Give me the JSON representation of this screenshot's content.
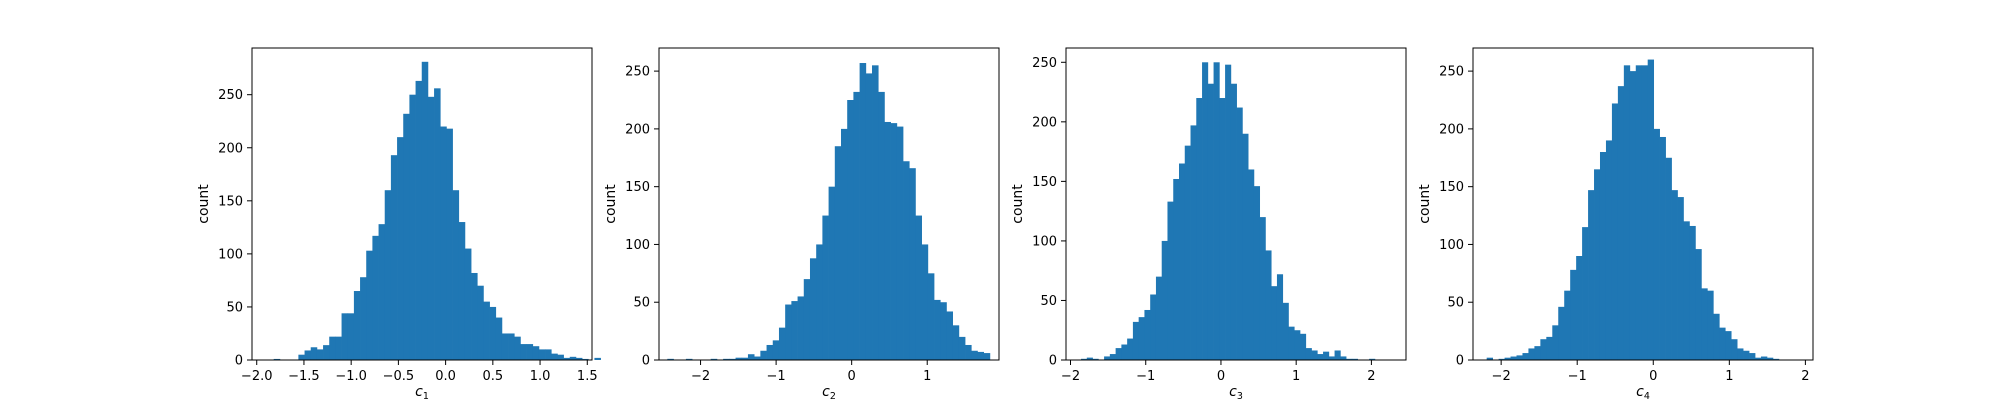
{
  "chart_data": [
    {
      "type": "bar",
      "xlabel": "c",
      "xlabel_sub": "1",
      "ylabel": "count",
      "xlim": [
        -2.05,
        1.55
      ],
      "ylim": [
        0,
        294
      ],
      "xticks": [
        -2.0,
        -1.5,
        -1.0,
        -0.5,
        0.0,
        0.5,
        1.0,
        1.5
      ],
      "xtick_labels": [
        "−2.0",
        "−1.5",
        "−1.0",
        "−0.5",
        "0.0",
        "0.5",
        "1.0",
        "1.5"
      ],
      "yticks": [
        0,
        50,
        100,
        150,
        200,
        250
      ],
      "ytick_labels": [
        "0",
        "50",
        "100",
        "150",
        "200",
        "250"
      ],
      "bin_start": -1.82,
      "bin_width": 0.0653,
      "values": [
        1,
        0,
        0,
        0,
        5,
        9,
        12,
        10,
        14,
        22,
        22,
        44,
        44,
        65,
        78,
        103,
        117,
        128,
        160,
        193,
        210,
        232,
        250,
        263,
        281,
        248,
        256,
        220,
        218,
        160,
        130,
        105,
        82,
        70,
        55,
        50,
        40,
        25,
        25,
        22,
        15,
        15,
        13,
        10,
        10,
        6,
        5,
        2,
        3,
        2,
        1,
        0,
        2
      ]
    },
    {
      "type": "bar",
      "xlabel": "c",
      "xlabel_sub": "2",
      "ylabel": "count",
      "xlim": [
        -2.55,
        1.95
      ],
      "ylim": [
        0,
        270
      ],
      "xticks": [
        -2,
        -1,
        0,
        1
      ],
      "xtick_labels": [
        "−2",
        "−1",
        "0",
        "1"
      ],
      "yticks": [
        0,
        50,
        100,
        150,
        200,
        250
      ],
      "ytick_labels": [
        "0",
        "50",
        "100",
        "150",
        "200",
        "250"
      ],
      "bin_start": -2.44,
      "bin_width": 0.0821,
      "values": [
        1,
        0,
        0,
        1,
        0,
        0,
        0,
        1,
        0,
        1,
        1,
        2,
        2,
        5,
        3,
        8,
        13,
        17,
        28,
        48,
        51,
        55,
        70,
        88,
        100,
        125,
        150,
        185,
        200,
        225,
        232,
        257,
        248,
        255,
        232,
        206,
        205,
        202,
        172,
        166,
        125,
        100,
        75,
        52,
        50,
        42,
        30,
        20,
        13,
        8,
        7,
        6
      ]
    },
    {
      "type": "bar",
      "xlabel": "c",
      "xlabel_sub": "3",
      "ylabel": "count",
      "xlim": [
        -2.06,
        2.46
      ],
      "ylim": [
        0,
        262
      ],
      "xticks": [
        -2,
        -1,
        0,
        1,
        2
      ],
      "xtick_labels": [
        "−2",
        "−1",
        "0",
        "1",
        "2"
      ],
      "yticks": [
        0,
        50,
        100,
        150,
        200,
        250
      ],
      "ytick_labels": [
        "0",
        "50",
        "100",
        "150",
        "200",
        "250"
      ],
      "bin_start": -1.86,
      "bin_width": 0.0766,
      "values": [
        1,
        2,
        1,
        0,
        3,
        5,
        10,
        13,
        18,
        32,
        36,
        42,
        55,
        70,
        100,
        133,
        152,
        165,
        180,
        197,
        220,
        250,
        232,
        250,
        220,
        248,
        232,
        212,
        190,
        160,
        146,
        120,
        92,
        62,
        72,
        48,
        28,
        25,
        22,
        10,
        8,
        5,
        7,
        3,
        8,
        3,
        1,
        1,
        0,
        0,
        1,
        0
      ]
    },
    {
      "type": "bar",
      "xlabel": "c",
      "xlabel_sub": "4",
      "ylabel": "count",
      "xlim": [
        -2.37,
        2.1
      ],
      "ylim": [
        0,
        270
      ],
      "xticks": [
        -2,
        -1,
        0,
        1,
        2
      ],
      "xtick_labels": [
        "−2",
        "−1",
        "0",
        "1",
        "2"
      ],
      "yticks": [
        0,
        50,
        100,
        150,
        200,
        250
      ],
      "ytick_labels": [
        "0",
        "50",
        "100",
        "150",
        "200",
        "250"
      ],
      "bin_start": -2.19,
      "bin_width": 0.0784,
      "values": [
        2,
        0,
        1,
        2,
        3,
        4,
        6,
        10,
        12,
        18,
        20,
        30,
        46,
        60,
        78,
        90,
        115,
        147,
        165,
        180,
        190,
        222,
        237,
        255,
        250,
        255,
        255,
        260,
        200,
        193,
        175,
        147,
        141,
        120,
        116,
        96,
        62,
        60,
        40,
        28,
        25,
        18,
        10,
        8,
        6,
        2,
        3,
        2,
        1
      ]
    }
  ]
}
